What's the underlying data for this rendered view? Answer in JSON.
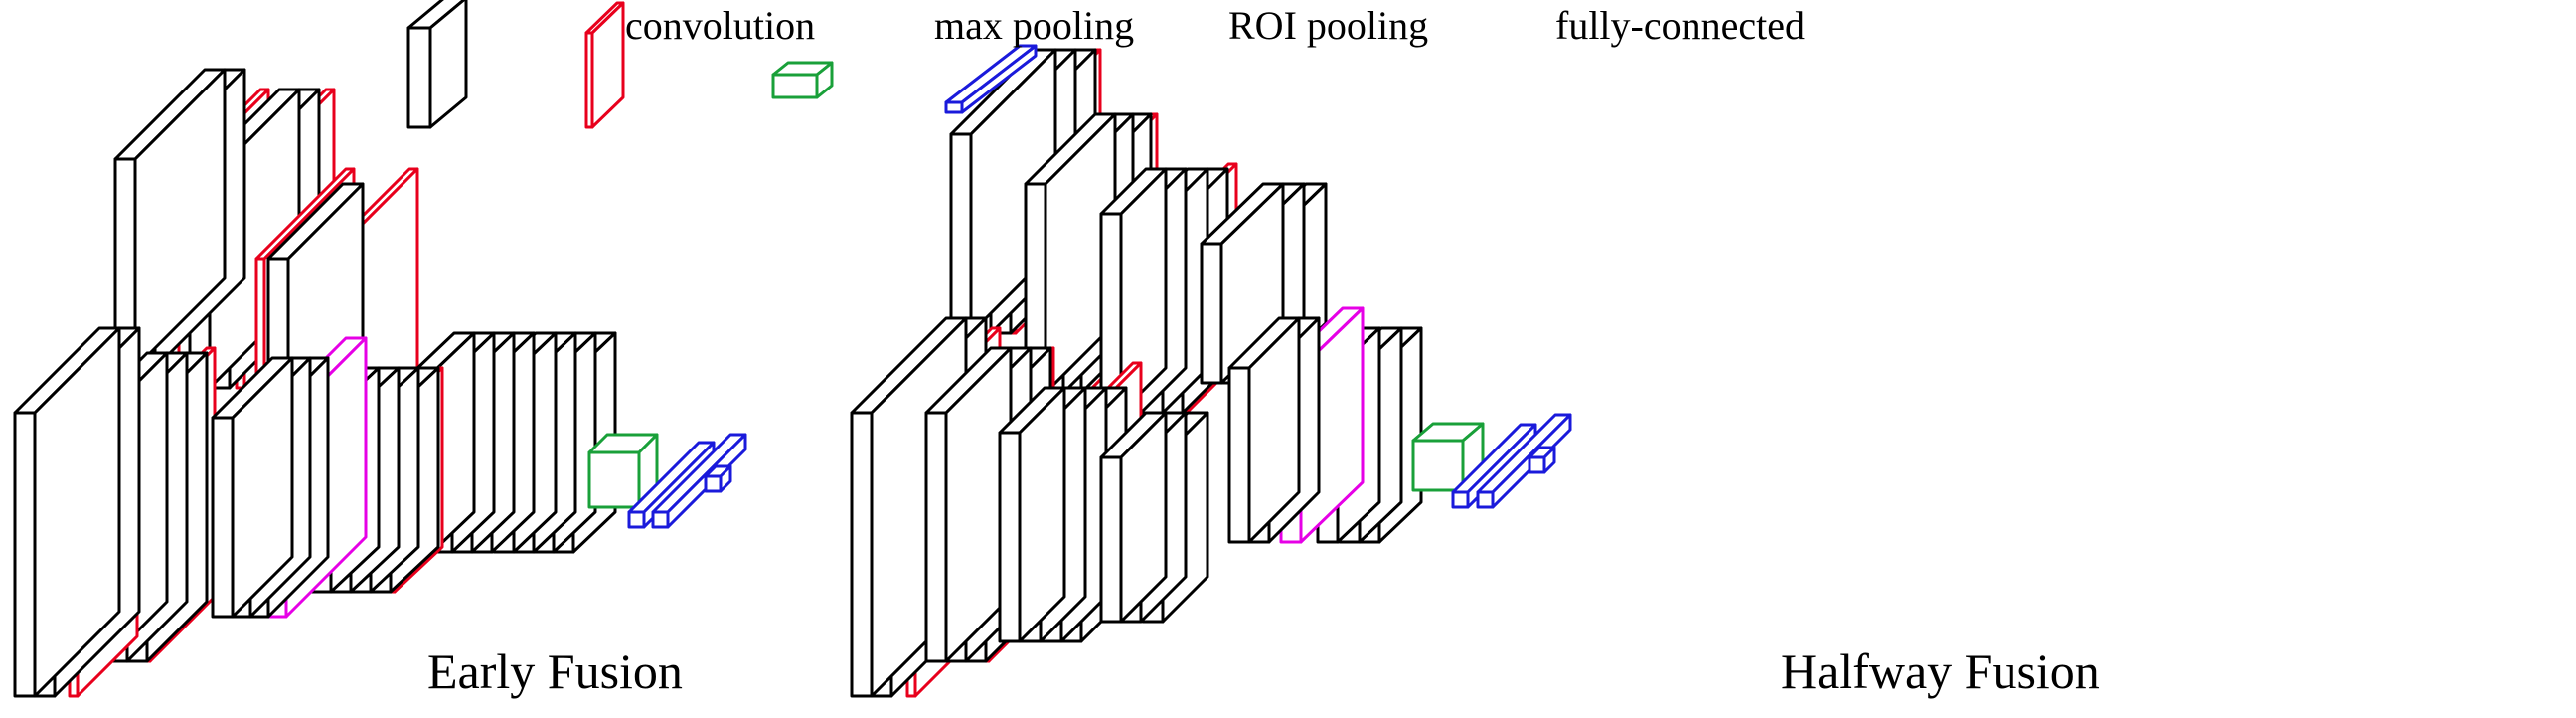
{
  "legend": {
    "convolution": "convolution",
    "max_pooling": "max pooling",
    "roi_pooling": "ROI pooling",
    "fully_connected": "fully-connected"
  },
  "captions": {
    "left": "Early Fusion",
    "right": "Halfway Fusion"
  },
  "colors": {
    "convolution": "#000000",
    "max_pooling": "#e8001c",
    "roi_pooling": "#19a039",
    "fully_connected": "#1a1adb",
    "mid_pooling": "#e600e6"
  }
}
